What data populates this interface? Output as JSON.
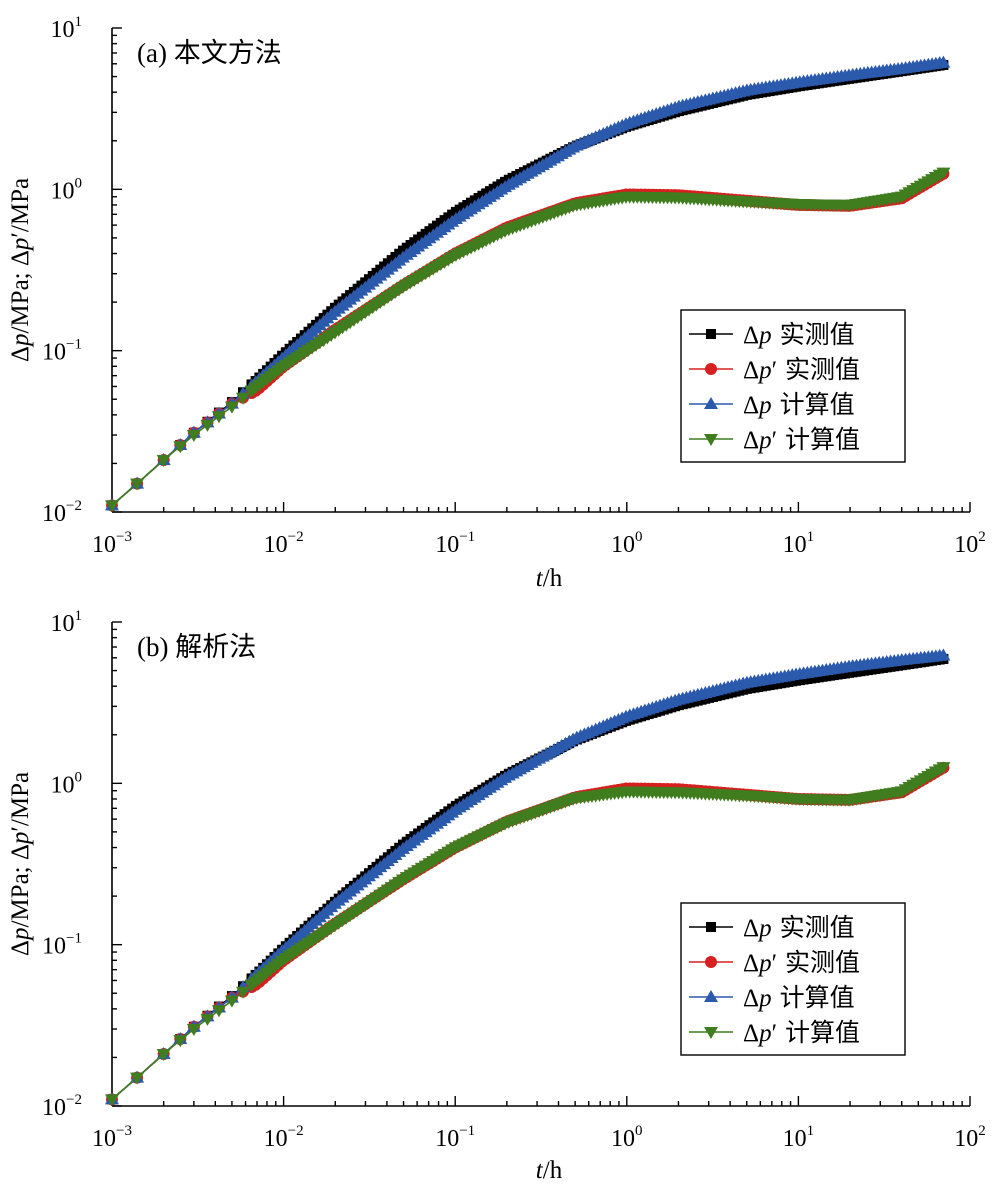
{
  "chart_data": [
    {
      "type": "line",
      "title": "(a) 本文方法",
      "xlabel": "t/h",
      "ylabel": "Δp/MPa; Δp′/MPa",
      "x_scale": "log",
      "y_scale": "log",
      "xlim": [
        0.001,
        100
      ],
      "ylim": [
        0.01,
        10
      ],
      "x_ticks": [
        {
          "base": "10",
          "exp": "−3"
        },
        {
          "base": "10",
          "exp": "−2"
        },
        {
          "base": "10",
          "exp": "−1"
        },
        {
          "base": "10",
          "exp": "0"
        },
        {
          "base": "10",
          "exp": "1"
        },
        {
          "base": "10",
          "exp": "2"
        }
      ],
      "y_ticks": [
        {
          "base": "10",
          "exp": "−2"
        },
        {
          "base": "10",
          "exp": "−1"
        },
        {
          "base": "10",
          "exp": "0"
        },
        {
          "base": "10",
          "exp": "1"
        }
      ],
      "legend": {
        "placement": "right-middle"
      },
      "x": [
        0.001,
        0.0014,
        0.002,
        0.003,
        0.005,
        0.007,
        0.01,
        0.02,
        0.05,
        0.1,
        0.2,
        0.5,
        1,
        2,
        5,
        10,
        20,
        40,
        70
      ],
      "series": [
        {
          "name_sym": "Δp",
          "name_text": "实测值",
          "color": "#000000",
          "marker": "square",
          "values": [
            0.011,
            0.015,
            0.021,
            0.031,
            0.048,
            0.066,
            0.095,
            0.185,
            0.42,
            0.72,
            1.13,
            1.85,
            2.45,
            3.05,
            3.85,
            4.35,
            4.85,
            5.4,
            5.9
          ]
        },
        {
          "name_sym": "Δp′",
          "name_text": "实测值",
          "color": "#d62020",
          "marker": "circle",
          "values": [
            0.011,
            0.015,
            0.021,
            0.031,
            0.047,
            0.057,
            0.08,
            0.135,
            0.255,
            0.4,
            0.58,
            0.82,
            0.93,
            0.92,
            0.85,
            0.8,
            0.79,
            0.88,
            1.25
          ]
        },
        {
          "name_sym": "Δp",
          "name_text": "计算值",
          "color": "#2b5aad",
          "marker": "triangle-up",
          "values": [
            0.011,
            0.015,
            0.021,
            0.031,
            0.047,
            0.065,
            0.091,
            0.175,
            0.38,
            0.65,
            1.05,
            1.85,
            2.55,
            3.25,
            4.1,
            4.6,
            5.1,
            5.6,
            6.1
          ]
        },
        {
          "name_sym": "Δp′",
          "name_text": "计算值",
          "color": "#3f7d1f",
          "marker": "triangle-down",
          "values": [
            0.011,
            0.015,
            0.021,
            0.03,
            0.045,
            0.06,
            0.08,
            0.13,
            0.25,
            0.39,
            0.56,
            0.8,
            0.9,
            0.89,
            0.84,
            0.81,
            0.8,
            0.9,
            1.27
          ]
        }
      ]
    },
    {
      "type": "line",
      "title": "(b) 解析法",
      "xlabel": "t/h",
      "ylabel": "Δp/MPa; Δp′/MPa",
      "x_scale": "log",
      "y_scale": "log",
      "xlim": [
        0.001,
        100
      ],
      "ylim": [
        0.01,
        10
      ],
      "x_ticks": [
        {
          "base": "10",
          "exp": "−3"
        },
        {
          "base": "10",
          "exp": "−2"
        },
        {
          "base": "10",
          "exp": "−1"
        },
        {
          "base": "10",
          "exp": "0"
        },
        {
          "base": "10",
          "exp": "1"
        },
        {
          "base": "10",
          "exp": "2"
        }
      ],
      "y_ticks": [
        {
          "base": "10",
          "exp": "−2"
        },
        {
          "base": "10",
          "exp": "−1"
        },
        {
          "base": "10",
          "exp": "0"
        },
        {
          "base": "10",
          "exp": "1"
        }
      ],
      "legend": {
        "placement": "right-middle"
      },
      "x": [
        0.001,
        0.0014,
        0.002,
        0.003,
        0.005,
        0.007,
        0.01,
        0.02,
        0.05,
        0.1,
        0.2,
        0.5,
        1,
        2,
        5,
        10,
        20,
        40,
        70
      ],
      "series": [
        {
          "name_sym": "Δp",
          "name_text": "实测值",
          "color": "#000000",
          "marker": "square",
          "values": [
            0.011,
            0.015,
            0.021,
            0.031,
            0.048,
            0.066,
            0.095,
            0.185,
            0.42,
            0.72,
            1.13,
            1.85,
            2.45,
            3.05,
            3.85,
            4.35,
            4.85,
            5.4,
            5.9
          ]
        },
        {
          "name_sym": "Δp′",
          "name_text": "实测值",
          "color": "#d62020",
          "marker": "circle",
          "values": [
            0.011,
            0.015,
            0.021,
            0.031,
            0.047,
            0.057,
            0.08,
            0.135,
            0.255,
            0.4,
            0.58,
            0.82,
            0.93,
            0.92,
            0.85,
            0.8,
            0.79,
            0.88,
            1.25
          ]
        },
        {
          "name_sym": "Δp",
          "name_text": "计算值",
          "color": "#2b5aad",
          "marker": "triangle-up",
          "values": [
            0.011,
            0.015,
            0.021,
            0.031,
            0.047,
            0.066,
            0.093,
            0.18,
            0.395,
            0.68,
            1.1,
            1.9,
            2.6,
            3.3,
            4.2,
            4.75,
            5.3,
            5.8,
            6.2
          ]
        },
        {
          "name_sym": "Δp′",
          "name_text": "计算值",
          "color": "#3f7d1f",
          "marker": "triangle-down",
          "values": [
            0.011,
            0.015,
            0.021,
            0.03,
            0.045,
            0.06,
            0.081,
            0.132,
            0.255,
            0.4,
            0.57,
            0.81,
            0.89,
            0.88,
            0.84,
            0.8,
            0.79,
            0.89,
            1.26
          ]
        }
      ]
    }
  ]
}
